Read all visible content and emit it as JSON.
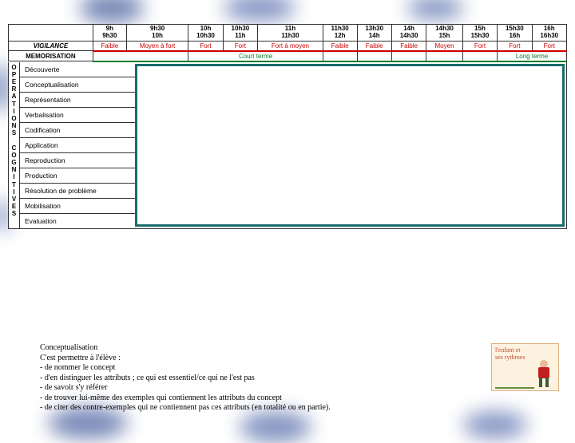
{
  "colors": {
    "red": "#c00",
    "green": "#0a7a2a",
    "teal_border": "#1a6b6b",
    "cloud": "#8696c2",
    "logo_bg": "#fdf2e0",
    "logo_border": "#e0b080",
    "logo_text": "#c05030"
  },
  "time_slots": [
    {
      "a": "9h",
      "b": "9h30"
    },
    {
      "a": "9h30",
      "b": "10h"
    },
    {
      "a": "10h",
      "b": "10h30"
    },
    {
      "a": "10h30",
      "b": "11h"
    },
    {
      "a": "11h",
      "b": "11h30"
    },
    {
      "a": "11h30",
      "b": "12h"
    },
    {
      "a": "13h30",
      "b": "14h"
    },
    {
      "a": "14h",
      "b": "14h30"
    },
    {
      "a": "14h30",
      "b": "15h"
    },
    {
      "a": "15h",
      "b": "15h30"
    },
    {
      "a": "15h30",
      "b": "16h"
    },
    {
      "a": "16h",
      "b": "16h30"
    }
  ],
  "vigilance": {
    "label": "VIGILANCE",
    "values": [
      "Faible",
      "Moyen à fort",
      "Fort",
      "Fort",
      "Fort à moyen",
      "Faible",
      "Faible",
      "Faible",
      "Moyen",
      "Fort",
      "Fort",
      "Fort"
    ]
  },
  "memorisation": {
    "label": "MEMORISATION",
    "spans": [
      {
        "text": "",
        "cols": 2
      },
      {
        "text": "Court terme",
        "cols": 3
      },
      {
        "text": "",
        "cols": 1
      },
      {
        "text": "",
        "cols": 1
      },
      {
        "text": "",
        "cols": 1
      },
      {
        "text": "",
        "cols": 1
      },
      {
        "text": "",
        "cols": 1
      },
      {
        "text": "Long terme",
        "cols": 2
      }
    ]
  },
  "side_label": "OPERATIONS COGNITIVES",
  "operations": [
    "Découverte",
    "Conceptualisation",
    "Représentation",
    "Verbalisation",
    "Codification",
    "Application",
    "Reproduction",
    "Production",
    "Résolution de problème",
    "Mobilisation",
    "Evaluation"
  ],
  "note": {
    "title": "Conceptualisation",
    "intro": "C'est permettre à l'élève :",
    "items": [
      "-          de nommer le concept",
      "-          d'en distinguer les attributs ; ce qui est essentiel/ce qui ne l'est pas",
      "-   de savoir s'y référer",
      "-          de trouver lui-même des exemples qui contiennent les attributs du concept",
      "-   de citer des contre-exemples qui ne contiennent pas ces attributs (en totalité ou en partie)."
    ]
  },
  "logo": {
    "line1": "l'enfant et",
    "line2": "ses rythmes"
  }
}
